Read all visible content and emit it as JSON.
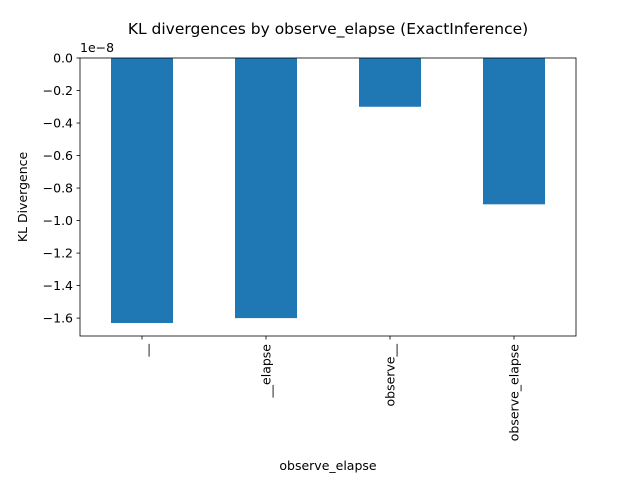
{
  "chart_data": {
    "type": "bar",
    "title": "KL divergences by observe_elapse (ExactInference)",
    "xlabel": "observe_elapse",
    "ylabel": "KL Divergence",
    "categories": [
      "__",
      "__elapse",
      "observe__",
      "observe_elapse"
    ],
    "values": [
      -1.63e-08,
      -1.6e-08,
      -3e-09,
      -9e-09
    ],
    "ylim": [
      -1.71e-08,
      0
    ],
    "y_ticks": [
      0,
      -2e-09,
      -4e-09,
      -6e-09,
      -8e-09,
      -1e-08,
      -1.2e-08,
      -1.4e-08,
      -1.6e-08
    ],
    "y_tick_labels": [
      "0.0",
      "−0.2",
      "−0.4",
      "−0.6",
      "−0.8",
      "−1.0",
      "−1.2",
      "−1.4",
      "−1.6"
    ],
    "y_offset_label": "1e−8",
    "bar_color": "#1f77b4",
    "grid": false,
    "legend": false
  }
}
